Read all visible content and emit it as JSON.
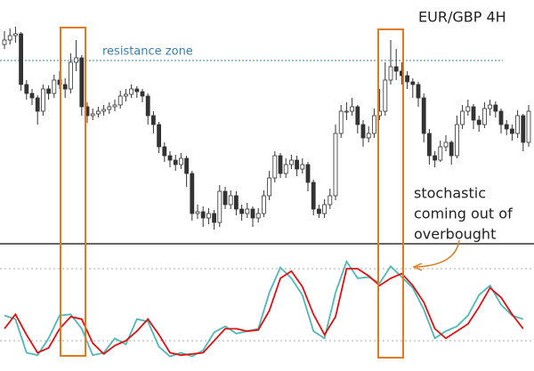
{
  "chart_data": [
    {
      "type": "candlestick",
      "title": "EUR/GBP 4H",
      "resistance_label": "resistance zone",
      "resistance_level": 202,
      "resistance_color": "#3a7fb0",
      "ylim": [
        0,
        270
      ],
      "up_color": "#ffffff",
      "down_color": "#333333",
      "open": [
        220,
        225,
        230,
        232,
        175,
        165,
        160,
        145,
        170,
        165,
        180,
        175,
        170,
        200,
        205,
        150,
        140,
        142,
        145,
        147,
        150,
        152,
        162,
        164,
        170,
        167,
        162,
        140,
        130,
        105,
        95,
        90,
        85,
        92,
        75,
        30,
        32,
        25,
        30,
        20,
        55,
        40,
        50,
        35,
        30,
        35,
        25,
        30,
        50,
        70,
        95,
        75,
        85,
        90,
        80,
        85,
        65,
        35,
        30,
        40,
        50,
        120,
        145,
        145,
        150,
        130,
        115,
        120,
        140,
        145,
        180,
        195,
        190,
        185,
        178,
        175,
        160,
        120,
        95,
        90,
        105,
        110,
        95,
        130,
        145,
        150,
        135,
        130,
        148,
        152,
        145,
        130,
        125,
        120,
        140,
        110
      ],
      "high": [
        235,
        238,
        240,
        234,
        180,
        170,
        163,
        175,
        174,
        186,
        190,
        182,
        210,
        225,
        208,
        155,
        148,
        150,
        152,
        155,
        158,
        168,
        170,
        175,
        173,
        170,
        165,
        145,
        133,
        110,
        100,
        96,
        98,
        95,
        78,
        40,
        38,
        36,
        34,
        62,
        60,
        56,
        55,
        40,
        42,
        38,
        36,
        56,
        78,
        100,
        98,
        92,
        96,
        95,
        92,
        88,
        68,
        40,
        46,
        58,
        130,
        152,
        155,
        160,
        152,
        135,
        128,
        148,
        170,
        200,
        225,
        215,
        200,
        190,
        182,
        178,
        165,
        125,
        100,
        112,
        118,
        112,
        140,
        152,
        158,
        153,
        140,
        155,
        158,
        156,
        148,
        135,
        130,
        146,
        142,
        152
      ],
      "low": [
        215,
        220,
        222,
        168,
        158,
        152,
        130,
        140,
        158,
        160,
        170,
        160,
        165,
        190,
        140,
        132,
        135,
        138,
        140,
        142,
        145,
        148,
        156,
        160,
        160,
        155,
        130,
        120,
        98,
        88,
        82,
        78,
        80,
        60,
        22,
        24,
        15,
        18,
        12,
        15,
        35,
        35,
        28,
        22,
        25,
        15,
        20,
        26,
        45,
        65,
        70,
        70,
        80,
        72,
        75,
        55,
        28,
        25,
        25,
        35,
        45,
        115,
        135,
        140,
        120,
        105,
        110,
        115,
        135,
        140,
        175,
        180,
        175,
        170,
        160,
        150,
        110,
        85,
        82,
        88,
        100,
        85,
        92,
        125,
        140,
        125,
        122,
        126,
        140,
        138,
        120,
        118,
        112,
        115,
        100,
        105
      ],
      "close": [
        225,
        230,
        232,
        175,
        165,
        160,
        145,
        170,
        165,
        180,
        175,
        170,
        200,
        205,
        150,
        140,
        142,
        145,
        147,
        150,
        152,
        162,
        164,
        170,
        167,
        162,
        140,
        130,
        105,
        95,
        90,
        85,
        92,
        75,
        30,
        32,
        25,
        30,
        20,
        55,
        40,
        50,
        35,
        30,
        35,
        25,
        30,
        50,
        70,
        95,
        75,
        85,
        90,
        80,
        85,
        65,
        35,
        30,
        40,
        50,
        120,
        145,
        145,
        150,
        130,
        115,
        120,
        140,
        145,
        180,
        195,
        190,
        185,
        178,
        175,
        160,
        120,
        95,
        90,
        105,
        110,
        95,
        130,
        145,
        150,
        135,
        130,
        148,
        152,
        145,
        130,
        125,
        120,
        140,
        110,
        145
      ]
    },
    {
      "type": "stochastic",
      "note": [
        "stochastic",
        "coming out of",
        "overbought"
      ],
      "note_color": "#222222",
      "ylim": [
        0,
        100
      ],
      "levels": [
        20,
        80
      ],
      "x": [
        0,
        2,
        4,
        6,
        8,
        10,
        12,
        14,
        16,
        18,
        20,
        22,
        24,
        26,
        28,
        30,
        32,
        34,
        36,
        38,
        40,
        42,
        44,
        46,
        48,
        50,
        52,
        54,
        56,
        58,
        60,
        62,
        64,
        66,
        68,
        70,
        72,
        74,
        76,
        78,
        80,
        82,
        84,
        86,
        88,
        90,
        92,
        94
      ],
      "series": [
        {
          "color": "#4fb8b8",
          "values": [
            41,
            38,
            10,
            8,
            22,
            41,
            42,
            30,
            8,
            10,
            22,
            17,
            38,
            36,
            15,
            7,
            10,
            7,
            12,
            27,
            32,
            26,
            28,
            30,
            60,
            81,
            72,
            58,
            28,
            22,
            60,
            86,
            72,
            73,
            68,
            82,
            73,
            64,
            46,
            22,
            28,
            32,
            41,
            58,
            66,
            50,
            41,
            38
          ]
        },
        {
          "color": "#e01010",
          "values": [
            30,
            42,
            25,
            10,
            14,
            30,
            40,
            38,
            18,
            9,
            16,
            20,
            28,
            38,
            25,
            10,
            8,
            9,
            10,
            20,
            30,
            30,
            28,
            29,
            45,
            72,
            78,
            65,
            42,
            25,
            40,
            80,
            80,
            74,
            66,
            72,
            76,
            66,
            52,
            30,
            22,
            28,
            34,
            48,
            64,
            56,
            42,
            30
          ]
        }
      ]
    }
  ]
}
